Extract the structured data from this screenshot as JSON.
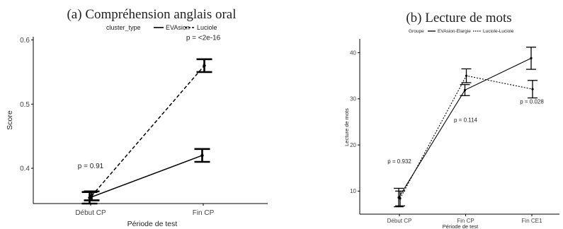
{
  "chart_data": [
    {
      "type": "line",
      "title": "(a) Compréhension anglais oral",
      "legend_title": "cluster_type",
      "legend_position": "top",
      "xlabel": "Période de test",
      "ylabel": "Score",
      "categories": [
        "Début CP",
        "Fin CP"
      ],
      "ylim": [
        0.345,
        0.605
      ],
      "yticks": [
        0.4,
        0.5,
        0.6
      ],
      "grid": false,
      "series": [
        {
          "name": "EVAsion",
          "line": "solid",
          "values": [
            0.354,
            0.42
          ],
          "errors": [
            0.009,
            0.01
          ]
        },
        {
          "name": "Luciole",
          "line": "dashed",
          "values": [
            0.357,
            0.56
          ],
          "errors": [
            0.007,
            0.01
          ]
        }
      ],
      "annotations": [
        {
          "text": "p = 0.91",
          "x": 0,
          "y": 0.4
        },
        {
          "text": "p = <2e-16",
          "x": 1,
          "y": 0.6
        }
      ]
    },
    {
      "type": "line",
      "title": "(b) Lecture de mots",
      "legend_title": "Groupe",
      "legend_position": "top",
      "xlabel": "Période de test",
      "ylabel": "Lecture de mots",
      "categories": [
        "Début CP",
        "Fin CP",
        "Fin CE1"
      ],
      "ylim": [
        5,
        43
      ],
      "yticks": [
        10,
        20,
        30,
        40
      ],
      "grid": false,
      "series": [
        {
          "name": "EVAsion-Elargie",
          "line": "solid",
          "values": [
            8.6,
            31.9,
            38.8
          ],
          "errors": [
            2.0,
            1.2,
            2.4
          ]
        },
        {
          "name": "Luciole-Luciole",
          "line": "dotted",
          "values": [
            8.4,
            35.0,
            32.1
          ],
          "errors": [
            1.6,
            1.5,
            1.9
          ]
        }
      ],
      "annotations": [
        {
          "text": "p = 0.932",
          "x": 0,
          "y": 16
        },
        {
          "text": "p = 0.114",
          "x": 1,
          "y": 25
        },
        {
          "text": "p = 0.028",
          "x": 2,
          "y": 29
        }
      ]
    }
  ]
}
